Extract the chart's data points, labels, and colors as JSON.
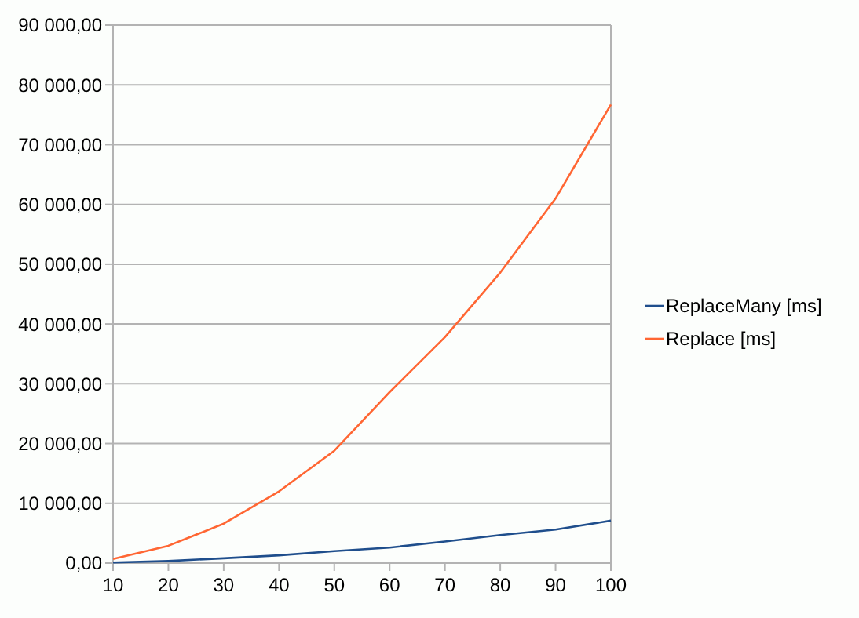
{
  "chart_data": {
    "type": "line",
    "x": [
      10,
      20,
      30,
      40,
      50,
      60,
      70,
      80,
      90,
      100
    ],
    "series": [
      {
        "name": "ReplaceMany [ms]",
        "color": "#1f4e8c",
        "values": [
          100,
          350,
          800,
          1300,
          2000,
          2600,
          3600,
          4700,
          5600,
          7100
        ]
      },
      {
        "name": "Replace [ms]",
        "color": "#ff6633",
        "values": [
          700,
          2900,
          6600,
          12000,
          18800,
          28600,
          37800,
          48600,
          61000,
          76700
        ]
      }
    ],
    "xlim": [
      10,
      100
    ],
    "xticks": [
      10,
      20,
      30,
      40,
      50,
      60,
      70,
      80,
      90,
      100
    ],
    "ylim": [
      0,
      90000
    ],
    "yticks": [
      {
        "value": 0,
        "label": "0,00"
      },
      {
        "value": 10000,
        "label": "10 000,00"
      },
      {
        "value": 20000,
        "label": "20 000,00"
      },
      {
        "value": 30000,
        "label": "30 000,00"
      },
      {
        "value": 40000,
        "label": "40 000,00"
      },
      {
        "value": 50000,
        "label": "50 000,00"
      },
      {
        "value": 60000,
        "label": "60 000,00"
      },
      {
        "value": 70000,
        "label": "70 000,00"
      },
      {
        "value": 80000,
        "label": "80 000,00"
      },
      {
        "value": 90000,
        "label": "90 000,00"
      }
    ],
    "grid": "y",
    "legend": "right",
    "marker": "none",
    "line_style": "solid"
  }
}
